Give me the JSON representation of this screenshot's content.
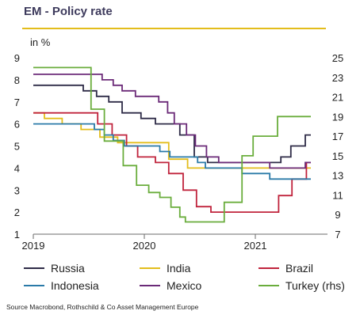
{
  "title": "EM - Policy rate",
  "source": "Source Macrobond, Rothschild & Co Asset Management Europe",
  "accent_color": "#e3bd1c",
  "chart_data": {
    "type": "line",
    "ylabel": "in %",
    "ylim": [
      1,
      9
    ],
    "y2lim": [
      7,
      25
    ],
    "xlim": [
      2019.0,
      2021.65
    ],
    "yticks": [
      1,
      2,
      3,
      4,
      5,
      6,
      7,
      8,
      9
    ],
    "y2ticks": [
      7,
      9,
      11,
      13,
      15,
      17,
      19,
      21,
      23,
      25
    ],
    "xticks": [
      {
        "value": 2019.0,
        "label": "2019"
      },
      {
        "value": 2020.0,
        "label": "2020"
      },
      {
        "value": 2021.0,
        "label": "2021"
      }
    ],
    "legend_position": "bottom",
    "series": [
      {
        "name": "Russia",
        "axis": "left",
        "color": "#2e2b47",
        "points": [
          [
            2019.0,
            7.75
          ],
          [
            2019.45,
            7.75
          ],
          [
            2019.45,
            7.5
          ],
          [
            2019.57,
            7.5
          ],
          [
            2019.57,
            7.25
          ],
          [
            2019.68,
            7.25
          ],
          [
            2019.68,
            7.0
          ],
          [
            2019.8,
            7.0
          ],
          [
            2019.8,
            6.5
          ],
          [
            2019.97,
            6.5
          ],
          [
            2019.97,
            6.25
          ],
          [
            2020.1,
            6.25
          ],
          [
            2020.1,
            6.0
          ],
          [
            2020.32,
            6.0
          ],
          [
            2020.32,
            5.5
          ],
          [
            2020.45,
            5.5
          ],
          [
            2020.45,
            4.5
          ],
          [
            2020.57,
            4.5
          ],
          [
            2020.57,
            4.25
          ],
          [
            2021.23,
            4.25
          ],
          [
            2021.23,
            4.5
          ],
          [
            2021.32,
            4.5
          ],
          [
            2021.32,
            5.0
          ],
          [
            2021.45,
            5.0
          ],
          [
            2021.45,
            5.5
          ],
          [
            2021.5,
            5.5
          ]
        ]
      },
      {
        "name": "India",
        "axis": "left",
        "color": "#e3bd1c",
        "points": [
          [
            2019.0,
            6.5
          ],
          [
            2019.1,
            6.5
          ],
          [
            2019.1,
            6.25
          ],
          [
            2019.26,
            6.25
          ],
          [
            2019.26,
            6.0
          ],
          [
            2019.43,
            6.0
          ],
          [
            2019.43,
            5.75
          ],
          [
            2019.6,
            5.75
          ],
          [
            2019.6,
            5.4
          ],
          [
            2019.76,
            5.4
          ],
          [
            2019.76,
            5.15
          ],
          [
            2020.22,
            5.15
          ],
          [
            2020.22,
            4.4
          ],
          [
            2020.39,
            4.4
          ],
          [
            2020.39,
            4.0
          ],
          [
            2021.5,
            4.0
          ]
        ]
      },
      {
        "name": "Brazil",
        "axis": "left",
        "color": "#c0233c",
        "points": [
          [
            2019.0,
            6.5
          ],
          [
            2019.58,
            6.5
          ],
          [
            2019.58,
            6.0
          ],
          [
            2019.71,
            6.0
          ],
          [
            2019.71,
            5.5
          ],
          [
            2019.84,
            5.5
          ],
          [
            2019.84,
            5.0
          ],
          [
            2019.94,
            5.0
          ],
          [
            2019.94,
            4.5
          ],
          [
            2020.1,
            4.5
          ],
          [
            2020.1,
            4.25
          ],
          [
            2020.22,
            4.25
          ],
          [
            2020.22,
            3.75
          ],
          [
            2020.35,
            3.75
          ],
          [
            2020.35,
            3.0
          ],
          [
            2020.47,
            3.0
          ],
          [
            2020.47,
            2.25
          ],
          [
            2020.6,
            2.25
          ],
          [
            2020.6,
            2.0
          ],
          [
            2021.21,
            2.0
          ],
          [
            2021.21,
            2.75
          ],
          [
            2021.33,
            2.75
          ],
          [
            2021.33,
            3.5
          ],
          [
            2021.46,
            3.5
          ],
          [
            2021.46,
            4.25
          ],
          [
            2021.5,
            4.25
          ]
        ]
      },
      {
        "name": "Indonesia",
        "axis": "left",
        "color": "#2a7aa8",
        "points": [
          [
            2019.0,
            6.0
          ],
          [
            2019.55,
            6.0
          ],
          [
            2019.55,
            5.75
          ],
          [
            2019.64,
            5.75
          ],
          [
            2019.64,
            5.5
          ],
          [
            2019.72,
            5.5
          ],
          [
            2019.72,
            5.25
          ],
          [
            2019.82,
            5.25
          ],
          [
            2019.82,
            5.0
          ],
          [
            2020.14,
            5.0
          ],
          [
            2020.14,
            4.75
          ],
          [
            2020.23,
            4.75
          ],
          [
            2020.23,
            4.5
          ],
          [
            2020.48,
            4.5
          ],
          [
            2020.48,
            4.25
          ],
          [
            2020.55,
            4.25
          ],
          [
            2020.55,
            4.0
          ],
          [
            2020.88,
            4.0
          ],
          [
            2020.88,
            3.75
          ],
          [
            2021.13,
            3.75
          ],
          [
            2021.13,
            3.5
          ],
          [
            2021.5,
            3.5
          ]
        ]
      },
      {
        "name": "Mexico",
        "axis": "left",
        "color": "#6b2a78",
        "points": [
          [
            2019.0,
            8.25
          ],
          [
            2019.62,
            8.25
          ],
          [
            2019.62,
            8.0
          ],
          [
            2019.72,
            8.0
          ],
          [
            2019.72,
            7.75
          ],
          [
            2019.8,
            7.75
          ],
          [
            2019.8,
            7.5
          ],
          [
            2019.92,
            7.5
          ],
          [
            2019.92,
            7.25
          ],
          [
            2020.13,
            7.25
          ],
          [
            2020.13,
            7.0
          ],
          [
            2020.21,
            7.0
          ],
          [
            2020.21,
            6.5
          ],
          [
            2020.27,
            6.5
          ],
          [
            2020.27,
            6.0
          ],
          [
            2020.38,
            6.0
          ],
          [
            2020.38,
            5.5
          ],
          [
            2020.46,
            5.5
          ],
          [
            2020.46,
            5.0
          ],
          [
            2020.56,
            5.0
          ],
          [
            2020.56,
            4.5
          ],
          [
            2020.67,
            4.5
          ],
          [
            2020.67,
            4.25
          ],
          [
            2021.13,
            4.25
          ],
          [
            2021.13,
            4.0
          ],
          [
            2021.45,
            4.0
          ],
          [
            2021.45,
            4.25
          ],
          [
            2021.5,
            4.25
          ]
        ]
      },
      {
        "name": "Turkey (rhs)",
        "axis": "right",
        "color": "#6aad3c",
        "points": [
          [
            2019.0,
            24.0
          ],
          [
            2019.52,
            24.0
          ],
          [
            2019.52,
            19.75
          ],
          [
            2019.64,
            19.75
          ],
          [
            2019.64,
            16.5
          ],
          [
            2019.81,
            16.5
          ],
          [
            2019.81,
            14.0
          ],
          [
            2019.93,
            14.0
          ],
          [
            2019.93,
            12.0
          ],
          [
            2020.04,
            12.0
          ],
          [
            2020.04,
            11.25
          ],
          [
            2020.14,
            11.25
          ],
          [
            2020.14,
            10.75
          ],
          [
            2020.24,
            10.75
          ],
          [
            2020.24,
            9.75
          ],
          [
            2020.32,
            9.75
          ],
          [
            2020.32,
            8.75
          ],
          [
            2020.37,
            8.75
          ],
          [
            2020.37,
            8.25
          ],
          [
            2020.72,
            8.25
          ],
          [
            2020.72,
            10.25
          ],
          [
            2020.88,
            10.25
          ],
          [
            2020.88,
            15.0
          ],
          [
            2020.98,
            15.0
          ],
          [
            2020.98,
            17.0
          ],
          [
            2021.2,
            17.0
          ],
          [
            2021.2,
            19.0
          ],
          [
            2021.5,
            19.0
          ]
        ]
      }
    ]
  }
}
